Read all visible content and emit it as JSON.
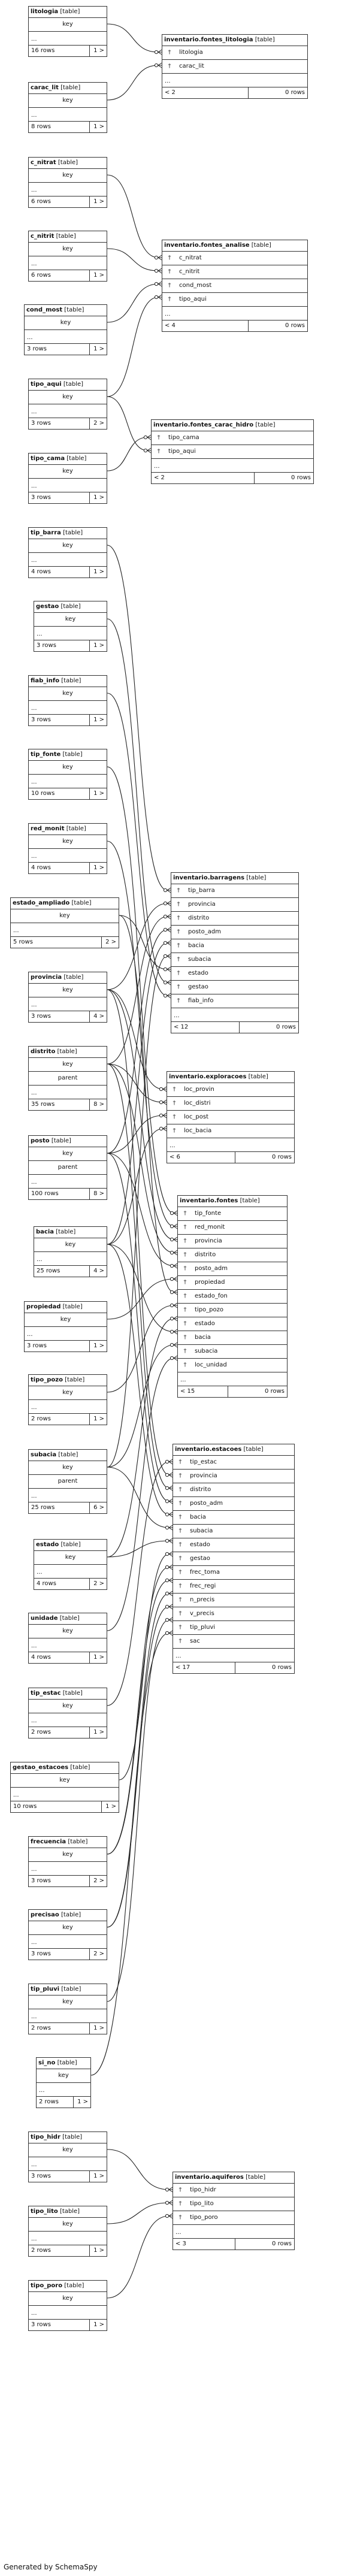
{
  "generated_by": "Generated by SchemaSpy",
  "small_tables": [
    {
      "id": "litologia",
      "name": "litologia",
      "kind": "[table]",
      "cols": [
        "key"
      ],
      "dots": "...",
      "rows": "16 rows",
      "out": "1 >"
    },
    {
      "id": "carac_lit",
      "name": "carac_lit",
      "kind": "[table]",
      "cols": [
        "key"
      ],
      "dots": "...",
      "rows": "8 rows",
      "out": "1 >"
    },
    {
      "id": "c_nitrat",
      "name": "c_nitrat",
      "kind": "[table]",
      "cols": [
        "key"
      ],
      "dots": "...",
      "rows": "6 rows",
      "out": "1 >"
    },
    {
      "id": "c_nitrit",
      "name": "c_nitrit",
      "kind": "[table]",
      "cols": [
        "key"
      ],
      "dots": "...",
      "rows": "6 rows",
      "out": "1 >"
    },
    {
      "id": "cond_most",
      "name": "cond_most",
      "kind": "[table]",
      "cols": [
        "key"
      ],
      "dots": "...",
      "rows": "3 rows",
      "out": "1 >"
    },
    {
      "id": "tipo_aqui",
      "name": "tipo_aqui",
      "kind": "[table]",
      "cols": [
        "key"
      ],
      "dots": "...",
      "rows": "3 rows",
      "out": "2 >"
    },
    {
      "id": "tipo_cama",
      "name": "tipo_cama",
      "kind": "[table]",
      "cols": [
        "key"
      ],
      "dots": "...",
      "rows": "3 rows",
      "out": "1 >"
    },
    {
      "id": "tip_barra",
      "name": "tip_barra",
      "kind": "[table]",
      "cols": [
        "key"
      ],
      "dots": "...",
      "rows": "4 rows",
      "out": "1 >"
    },
    {
      "id": "gestao",
      "name": "gestao",
      "kind": "[table]",
      "cols": [
        "key"
      ],
      "dots": "...",
      "rows": "3 rows",
      "out": "1 >"
    },
    {
      "id": "fiab_info",
      "name": "fiab_info",
      "kind": "[table]",
      "cols": [
        "key"
      ],
      "dots": "...",
      "rows": "3 rows",
      "out": "1 >"
    },
    {
      "id": "tip_fonte",
      "name": "tip_fonte",
      "kind": "[table]",
      "cols": [
        "key"
      ],
      "dots": "...",
      "rows": "10 rows",
      "out": "1 >"
    },
    {
      "id": "red_monit",
      "name": "red_monit",
      "kind": "[table]",
      "cols": [
        "key"
      ],
      "dots": "...",
      "rows": "4 rows",
      "out": "1 >"
    },
    {
      "id": "estado_ampliado",
      "name": "estado_ampliado",
      "kind": "[table]",
      "cols": [
        "key"
      ],
      "dots": "...",
      "rows": "5 rows",
      "out": "2 >"
    },
    {
      "id": "provincia",
      "name": "provincia",
      "kind": "[table]",
      "cols": [
        "key"
      ],
      "dots": "...",
      "rows": "3 rows",
      "out": "4 >"
    },
    {
      "id": "distrito",
      "name": "distrito",
      "kind": "[table]",
      "cols": [
        "key",
        "parent"
      ],
      "dots": "...",
      "rows": "35 rows",
      "out": "8 >"
    },
    {
      "id": "posto",
      "name": "posto",
      "kind": "[table]",
      "cols": [
        "key",
        "parent"
      ],
      "dots": "...",
      "rows": "100 rows",
      "out": "8 >"
    },
    {
      "id": "bacia",
      "name": "bacia",
      "kind": "[table]",
      "cols": [
        "key"
      ],
      "dots": "...",
      "rows": "25 rows",
      "out": "4 >"
    },
    {
      "id": "propiedad",
      "name": "propiedad",
      "kind": "[table]",
      "cols": [
        "key"
      ],
      "dots": "...",
      "rows": "3 rows",
      "out": "1 >"
    },
    {
      "id": "tipo_pozo",
      "name": "tipo_pozo",
      "kind": "[table]",
      "cols": [
        "key"
      ],
      "dots": "...",
      "rows": "2 rows",
      "out": "1 >"
    },
    {
      "id": "subacia",
      "name": "subacia",
      "kind": "[table]",
      "cols": [
        "key",
        "parent"
      ],
      "dots": "...",
      "rows": "25 rows",
      "out": "6 >"
    },
    {
      "id": "estado",
      "name": "estado",
      "kind": "[table]",
      "cols": [
        "key"
      ],
      "dots": "...",
      "rows": "4 rows",
      "out": "2 >"
    },
    {
      "id": "unidade",
      "name": "unidade",
      "kind": "[table]",
      "cols": [
        "key"
      ],
      "dots": "...",
      "rows": "4 rows",
      "out": "1 >"
    },
    {
      "id": "tip_estac",
      "name": "tip_estac",
      "kind": "[table]",
      "cols": [
        "key"
      ],
      "dots": "...",
      "rows": "2 rows",
      "out": "1 >"
    },
    {
      "id": "gestao_estacoes",
      "name": "gestao_estacoes",
      "kind": "[table]",
      "cols": [
        "key"
      ],
      "dots": "...",
      "rows": "10 rows",
      "out": "1 >"
    },
    {
      "id": "frecuencia",
      "name": "frecuencia",
      "kind": "[table]",
      "cols": [
        "key"
      ],
      "dots": "...",
      "rows": "3 rows",
      "out": "2 >"
    },
    {
      "id": "precisao",
      "name": "precisao",
      "kind": "[table]",
      "cols": [
        "key"
      ],
      "dots": "...",
      "rows": "3 rows",
      "out": "2 >"
    },
    {
      "id": "tip_pluvi",
      "name": "tip_pluvi",
      "kind": "[table]",
      "cols": [
        "key"
      ],
      "dots": "...",
      "rows": "2 rows",
      "out": "1 >"
    },
    {
      "id": "si_no",
      "name": "si_no",
      "kind": "[table]",
      "cols": [
        "key"
      ],
      "dots": "...",
      "rows": "2 rows",
      "out": "1 >"
    },
    {
      "id": "tipo_hidr",
      "name": "tipo_hidr",
      "kind": "[table]",
      "cols": [
        "key"
      ],
      "dots": "...",
      "rows": "3 rows",
      "out": "1 >"
    },
    {
      "id": "tipo_lito",
      "name": "tipo_lito",
      "kind": "[table]",
      "cols": [
        "key"
      ],
      "dots": "...",
      "rows": "2 rows",
      "out": "1 >"
    },
    {
      "id": "tipo_poro",
      "name": "tipo_poro",
      "kind": "[table]",
      "cols": [
        "key"
      ],
      "dots": "...",
      "rows": "3 rows",
      "out": "1 >"
    }
  ],
  "big_tables": [
    {
      "id": "fontes_litologia",
      "name": "inventario.fontes_litologia",
      "kind": "[table]",
      "cols": [
        "litologia",
        "carac_lit"
      ],
      "dots": "...",
      "in": "< 2",
      "rows": "0 rows"
    },
    {
      "id": "fontes_analise",
      "name": "inventario.fontes_analise",
      "kind": "[table]",
      "cols": [
        "c_nitrat",
        "c_nitrit",
        "cond_most",
        "tipo_aqui"
      ],
      "dots": "...",
      "in": "< 4",
      "rows": "0 rows"
    },
    {
      "id": "fontes_carac_hidro",
      "name": "inventario.fontes_carac_hidro",
      "kind": "[table]",
      "cols": [
        "tipo_cama",
        "tipo_aqui"
      ],
      "dots": "...",
      "in": "< 2",
      "rows": "0 rows"
    },
    {
      "id": "barragens",
      "name": "inventario.barragens",
      "kind": "[table]",
      "cols": [
        "tip_barra",
        "provincia",
        "distrito",
        "posto_adm",
        "bacia",
        "subacia",
        "estado",
        "gestao",
        "fiab_info"
      ],
      "dots": "...",
      "in": "< 12",
      "rows": "0 rows"
    },
    {
      "id": "exploracoes",
      "name": "inventario.exploracoes",
      "kind": "[table]",
      "cols": [
        "loc_provin",
        "loc_distri",
        "loc_post",
        "loc_bacia"
      ],
      "dots": "...",
      "in": "< 6",
      "rows": "0 rows"
    },
    {
      "id": "fontes",
      "name": "inventario.fontes",
      "kind": "[table]",
      "cols": [
        "tip_fonte",
        "red_monit",
        "provincia",
        "distrito",
        "posto_adm",
        "propiedad",
        "estado_fon",
        "tipo_pozo",
        "estado",
        "bacia",
        "subacia",
        "loc_unidad"
      ],
      "dots": "...",
      "in": "< 15",
      "rows": "0 rows"
    },
    {
      "id": "estacoes",
      "name": "inventario.estacoes",
      "kind": "[table]",
      "cols": [
        "tip_estac",
        "provincia",
        "distrito",
        "posto_adm",
        "bacia",
        "subacia",
        "estado",
        "gestao",
        "frec_toma",
        "frec_regi",
        "n_precis",
        "v_precis",
        "tip_pluvi",
        "sac"
      ],
      "dots": "...",
      "in": "< 17",
      "rows": "0 rows"
    },
    {
      "id": "aquiferos",
      "name": "inventario.aquiferos",
      "kind": "[table]",
      "cols": [
        "tipo_hidr",
        "tipo_lito",
        "tipo_poro"
      ],
      "dots": "...",
      "in": "< 3",
      "rows": "0 rows"
    }
  ],
  "relationships": [
    [
      "litologia",
      0,
      "fontes_litologia",
      0
    ],
    [
      "carac_lit",
      0,
      "fontes_litologia",
      1
    ],
    [
      "c_nitrat",
      0,
      "fontes_analise",
      0
    ],
    [
      "c_nitrit",
      0,
      "fontes_analise",
      1
    ],
    [
      "cond_most",
      0,
      "fontes_analise",
      2
    ],
    [
      "tipo_aqui",
      0,
      "fontes_analise",
      3
    ],
    [
      "tipo_aqui",
      0,
      "fontes_carac_hidro",
      1
    ],
    [
      "tipo_cama",
      0,
      "fontes_carac_hidro",
      0
    ],
    [
      "tip_barra",
      0,
      "barragens",
      0
    ],
    [
      "gestao",
      0,
      "barragens",
      7
    ],
    [
      "fiab_info",
      0,
      "barragens",
      8
    ],
    [
      "tip_fonte",
      0,
      "fontes",
      0
    ],
    [
      "red_monit",
      0,
      "fontes",
      1
    ],
    [
      "estado_ampliado",
      0,
      "barragens",
      6
    ],
    [
      "estado_ampliado",
      0,
      "fontes",
      6
    ],
    [
      "provincia",
      0,
      "barragens",
      1
    ],
    [
      "provincia",
      0,
      "exploracoes",
      0
    ],
    [
      "provincia",
      0,
      "fontes",
      2
    ],
    [
      "provincia",
      0,
      "estacoes",
      1
    ],
    [
      "distrito",
      0,
      "barragens",
      2
    ],
    [
      "distrito",
      0,
      "exploracoes",
      1
    ],
    [
      "distrito",
      0,
      "fontes",
      3
    ],
    [
      "distrito",
      0,
      "estacoes",
      2
    ],
    [
      "posto",
      0,
      "barragens",
      3
    ],
    [
      "posto",
      0,
      "exploracoes",
      2
    ],
    [
      "posto",
      0,
      "fontes",
      4
    ],
    [
      "posto",
      0,
      "estacoes",
      3
    ],
    [
      "bacia",
      0,
      "barragens",
      4
    ],
    [
      "bacia",
      0,
      "exploracoes",
      3
    ],
    [
      "bacia",
      0,
      "fontes",
      9
    ],
    [
      "bacia",
      0,
      "estacoes",
      4
    ],
    [
      "propiedad",
      0,
      "fontes",
      5
    ],
    [
      "tipo_pozo",
      0,
      "fontes",
      7
    ],
    [
      "subacia",
      0,
      "barragens",
      5
    ],
    [
      "subacia",
      0,
      "fontes",
      10
    ],
    [
      "subacia",
      0,
      "estacoes",
      5
    ],
    [
      "estado",
      0,
      "fontes",
      8
    ],
    [
      "estado",
      0,
      "estacoes",
      6
    ],
    [
      "unidade",
      0,
      "fontes",
      11
    ],
    [
      "tip_estac",
      0,
      "estacoes",
      0
    ],
    [
      "gestao_estacoes",
      0,
      "estacoes",
      7
    ],
    [
      "frecuencia",
      0,
      "estacoes",
      8
    ],
    [
      "frecuencia",
      0,
      "estacoes",
      9
    ],
    [
      "precisao",
      0,
      "estacoes",
      10
    ],
    [
      "precisao",
      0,
      "estacoes",
      11
    ],
    [
      "tip_pluvi",
      0,
      "estacoes",
      12
    ],
    [
      "si_no",
      0,
      "estacoes",
      13
    ],
    [
      "tipo_hidr",
      0,
      "aquiferos",
      0
    ],
    [
      "tipo_lito",
      0,
      "aquiferos",
      1
    ],
    [
      "tipo_poro",
      0,
      "aquiferos",
      2
    ]
  ],
  "fk_icon": "key-icon",
  "colors": {
    "border": "#333333",
    "line": "#222222",
    "background": "#ffffff"
  }
}
